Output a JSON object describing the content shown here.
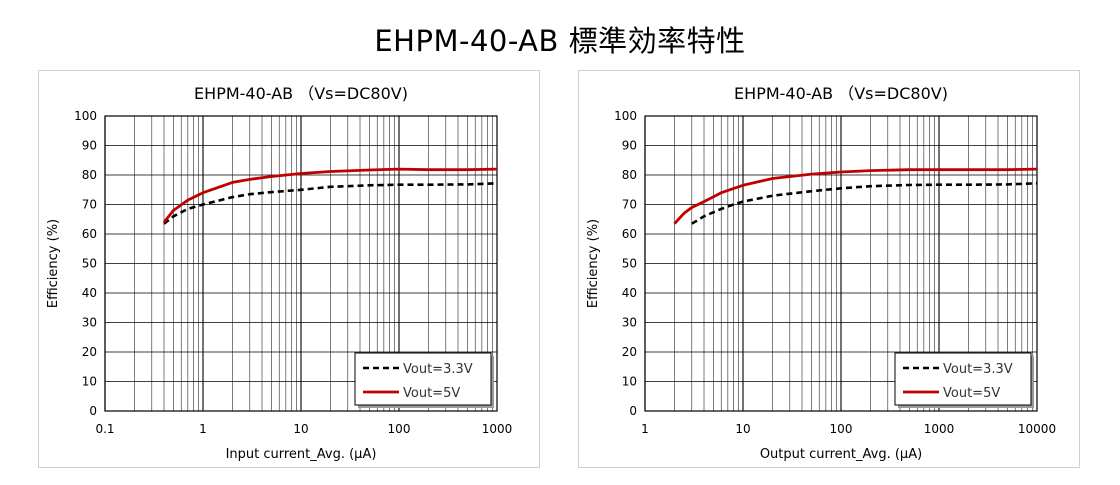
{
  "page_title": "EHPM-40-AB 標準効率特性",
  "chart_data": [
    {
      "type": "line",
      "title": "EHPM-40-AB （Vs=DC80V)",
      "xlabel": "Input current_Avg. (μA)",
      "ylabel": "Efficiency (%)",
      "xscale": "log",
      "xlim": [
        0.1,
        1000
      ],
      "ylim": [
        0,
        100
      ],
      "x_ticks": [
        "0.1",
        "1",
        "10",
        "100",
        "1000"
      ],
      "y_ticks": [
        "0",
        "10",
        "20",
        "30",
        "40",
        "50",
        "60",
        "70",
        "80",
        "90",
        "100"
      ],
      "grid": true,
      "legend_position": "bottom-right",
      "series": [
        {
          "name": "Vout=3.3V",
          "color": "#000000",
          "style": "dashed",
          "x": [
            0.4,
            0.5,
            0.7,
            1,
            2,
            3,
            5,
            10,
            20,
            50,
            100,
            200,
            500,
            1000
          ],
          "y": [
            63.5,
            66,
            68.5,
            70,
            72.5,
            73.5,
            74.2,
            75,
            76,
            76.5,
            76.7,
            76.7,
            76.8,
            77.2
          ]
        },
        {
          "name": "Vout=5V",
          "color": "#c00000",
          "style": "solid",
          "x": [
            0.4,
            0.5,
            0.7,
            1,
            2,
            3,
            5,
            10,
            20,
            50,
            100,
            200,
            500,
            1000
          ],
          "y": [
            64,
            68,
            71.5,
            74,
            77.5,
            78.5,
            79.5,
            80.5,
            81.2,
            81.7,
            82,
            81.8,
            81.8,
            82
          ]
        }
      ]
    },
    {
      "type": "line",
      "title": "EHPM-40-AB （Vs=DC80V)",
      "xlabel": "Output current_Avg. (μA)",
      "ylabel": "Efficiency (%)",
      "xscale": "log",
      "xlim": [
        1,
        10000
      ],
      "ylim": [
        0,
        100
      ],
      "x_ticks": [
        "1",
        "10",
        "100",
        "1000",
        "10000"
      ],
      "y_ticks": [
        "0",
        "10",
        "20",
        "30",
        "40",
        "50",
        "60",
        "70",
        "80",
        "90",
        "100"
      ],
      "grid": true,
      "legend_position": "bottom-right",
      "series": [
        {
          "name": "Vout=3.3V",
          "color": "#000000",
          "style": "dashed",
          "x": [
            3,
            4,
            6,
            8,
            10,
            20,
            50,
            100,
            200,
            500,
            1000,
            2000,
            5000,
            10000
          ],
          "y": [
            63.5,
            66,
            68.5,
            70,
            71,
            73,
            74.5,
            75.5,
            76.2,
            76.6,
            76.7,
            76.7,
            76.8,
            77.2
          ]
        },
        {
          "name": "Vout=5V",
          "color": "#c00000",
          "style": "solid",
          "x": [
            2,
            2.5,
            3,
            4,
            6,
            10,
            20,
            50,
            100,
            200,
            500,
            1000,
            5000,
            10000
          ],
          "y": [
            63.5,
            67,
            69,
            71,
            74,
            76.5,
            78.8,
            80.3,
            81,
            81.5,
            81.8,
            81.8,
            81.8,
            82
          ]
        }
      ]
    }
  ]
}
